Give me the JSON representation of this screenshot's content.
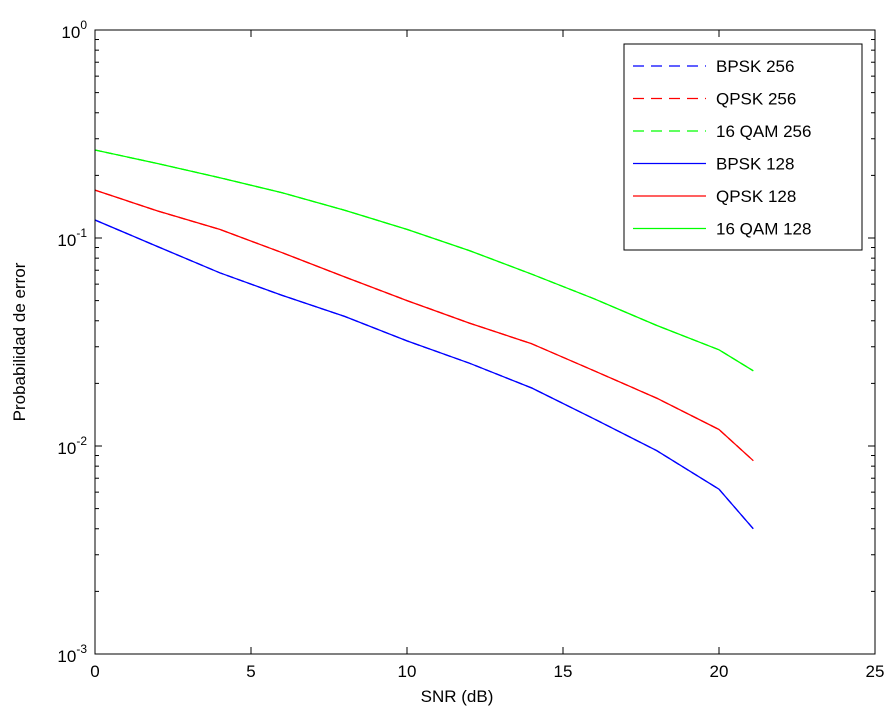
{
  "chart_data": {
    "type": "line",
    "title": "",
    "xlabel": "SNR (dB)",
    "ylabel": "Probabilidad de error",
    "xlim": [
      0,
      25
    ],
    "ylim": [
      0.001,
      1
    ],
    "yscale": "log",
    "grid": false,
    "legend_position": "top-right",
    "x_ticks": [
      {
        "value": 0,
        "label": "0"
      },
      {
        "value": 5,
        "label": "5"
      },
      {
        "value": 10,
        "label": "10"
      },
      {
        "value": 15,
        "label": "15"
      },
      {
        "value": 20,
        "label": "20"
      },
      {
        "value": 25,
        "label": "25"
      }
    ],
    "y_ticks": [
      {
        "value": 1,
        "base": "10",
        "exp": "0"
      },
      {
        "value": 0.1,
        "base": "10",
        "exp": "-1"
      },
      {
        "value": 0.01,
        "base": "10",
        "exp": "-2"
      },
      {
        "value": 0.001,
        "base": "10",
        "exp": "-3"
      }
    ],
    "x": [
      0,
      2,
      4,
      6,
      8,
      10,
      12,
      14,
      16,
      18,
      20,
      21.1
    ],
    "series": [
      {
        "name": "BPSK 256",
        "color": "#0000ff",
        "dash": "dashed",
        "values": [
          0.122,
          0.091,
          0.068,
          0.053,
          0.042,
          0.032,
          0.025,
          0.019,
          0.0135,
          0.0095,
          0.0062,
          0.004
        ]
      },
      {
        "name": "QPSK 256",
        "color": "#ff0000",
        "dash": "dashed",
        "values": [
          0.17,
          0.135,
          0.11,
          0.085,
          0.065,
          0.05,
          0.039,
          0.031,
          0.023,
          0.017,
          0.012,
          0.0085
        ]
      },
      {
        "name": "16 QAM 256",
        "color": "#00ff00",
        "dash": "dashed",
        "values": [
          0.265,
          0.228,
          0.195,
          0.165,
          0.136,
          0.11,
          0.087,
          0.067,
          0.051,
          0.038,
          0.029,
          0.023
        ]
      },
      {
        "name": "BPSK 128",
        "color": "#0000ff",
        "dash": "solid",
        "values": [
          0.122,
          0.091,
          0.068,
          0.053,
          0.042,
          0.032,
          0.025,
          0.019,
          0.0135,
          0.0095,
          0.0062,
          0.004
        ]
      },
      {
        "name": "QPSK 128",
        "color": "#ff0000",
        "dash": "solid",
        "values": [
          0.17,
          0.135,
          0.11,
          0.085,
          0.065,
          0.05,
          0.039,
          0.031,
          0.023,
          0.017,
          0.012,
          0.0085
        ]
      },
      {
        "name": "16 QAM 128",
        "color": "#00ff00",
        "dash": "solid",
        "values": [
          0.265,
          0.228,
          0.195,
          0.165,
          0.136,
          0.11,
          0.087,
          0.067,
          0.051,
          0.038,
          0.029,
          0.023
        ]
      }
    ]
  }
}
